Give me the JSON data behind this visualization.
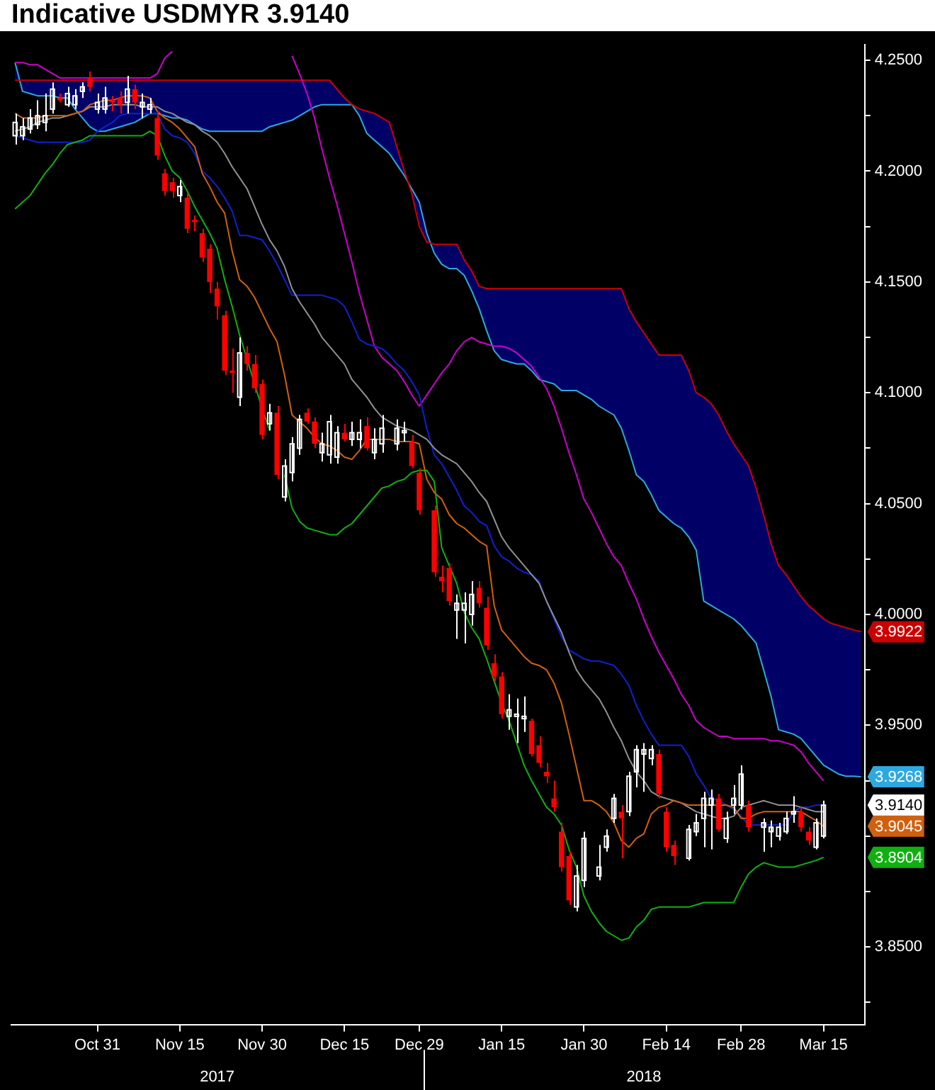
{
  "chart_data": {
    "type": "candlestick",
    "title": "Indicative USDMYR 3.9140",
    "categories": [
      null,
      null,
      null,
      null,
      null,
      null,
      null,
      null,
      null,
      null,
      null,
      "Oct 31",
      null,
      null,
      null,
      null,
      null,
      null,
      null,
      null,
      null,
      null,
      "Nov 15",
      null,
      null,
      null,
      null,
      null,
      null,
      null,
      null,
      null,
      null,
      "Nov 30",
      null,
      null,
      null,
      null,
      null,
      null,
      null,
      null,
      null,
      null,
      "Dec 15",
      null,
      null,
      null,
      null,
      null,
      null,
      null,
      null,
      null,
      "Dec 29",
      null,
      null,
      null,
      null,
      null,
      null,
      null,
      null,
      null,
      null,
      "Jan 15",
      null,
      null,
      null,
      null,
      null,
      null,
      null,
      null,
      null,
      null,
      "Jan 30",
      null,
      null,
      null,
      null,
      null,
      null,
      null,
      null,
      null,
      null,
      "Feb 14",
      null,
      null,
      null,
      null,
      null,
      null,
      null,
      null,
      null,
      "Feb 28",
      null,
      null,
      null,
      null,
      null,
      null,
      null,
      null,
      null,
      null,
      "Mar 15",
      null,
      null,
      null,
      null,
      null
    ],
    "ohlc": [
      [
        4.216,
        4.226,
        4.212,
        4.222
      ],
      [
        4.216,
        4.224,
        4.214,
        4.22
      ],
      [
        4.219,
        4.228,
        4.217,
        4.224
      ],
      [
        4.221,
        4.232,
        4.219,
        4.225
      ],
      [
        4.222,
        4.235,
        4.218,
        4.225
      ],
      [
        4.228,
        4.24,
        4.226,
        4.237
      ],
      [
        4.233,
        4.235,
        4.231,
        4.232
      ],
      [
        4.23,
        4.238,
        4.229,
        4.235
      ],
      [
        4.23,
        4.237,
        4.228,
        4.234
      ],
      [
        4.236,
        4.24,
        4.233,
        4.238
      ],
      [
        4.242,
        4.245,
        4.236,
        4.238
      ],
      [
        4.228,
        4.235,
        4.226,
        4.231
      ],
      [
        4.228,
        4.238,
        4.226,
        4.233
      ],
      [
        4.232,
        4.234,
        4.227,
        4.231
      ],
      [
        4.233,
        4.236,
        4.226,
        4.23
      ],
      [
        4.231,
        4.243,
        4.226,
        4.237
      ],
      [
        4.237,
        4.239,
        4.228,
        4.231
      ],
      [
        4.229,
        4.235,
        4.224,
        4.231
      ],
      [
        4.228,
        4.233,
        4.226,
        4.23
      ],
      [
        4.224,
        4.227,
        4.205,
        4.207
      ],
      [
        4.199,
        4.201,
        4.189,
        4.191
      ],
      [
        4.195,
        4.197,
        4.188,
        4.191
      ],
      [
        4.189,
        4.196,
        4.186,
        4.193
      ],
      [
        4.188,
        4.19,
        4.172,
        4.174
      ],
      [
        4.178,
        4.18,
        4.173,
        4.177
      ],
      [
        4.172,
        4.174,
        4.159,
        4.161
      ],
      [
        4.165,
        4.167,
        4.145,
        4.15
      ],
      [
        4.147,
        4.15,
        4.133,
        4.139
      ],
      [
        4.135,
        4.137,
        4.108,
        4.11
      ],
      [
        4.11,
        4.12,
        4.1,
        4.109
      ],
      [
        4.098,
        4.125,
        4.094,
        4.118
      ],
      [
        4.118,
        4.121,
        4.11,
        4.113
      ],
      [
        4.113,
        4.117,
        4.1,
        4.102
      ],
      [
        4.104,
        4.106,
        4.079,
        4.081
      ],
      [
        4.086,
        4.095,
        4.083,
        4.091
      ],
      [
        4.091,
        4.094,
        4.061,
        4.063
      ],
      [
        4.053,
        4.07,
        4.051,
        4.067
      ],
      [
        4.064,
        4.08,
        4.06,
        4.077
      ],
      [
        4.075,
        4.09,
        4.072,
        4.088
      ],
      [
        4.091,
        4.093,
        4.086,
        4.087
      ],
      [
        4.087,
        4.089,
        4.075,
        4.077
      ],
      [
        4.073,
        4.082,
        4.069,
        4.077
      ],
      [
        4.072,
        4.09,
        4.068,
        4.087
      ],
      [
        4.071,
        4.085,
        4.068,
        4.082
      ],
      [
        4.082,
        4.086,
        4.078,
        4.079
      ],
      [
        4.079,
        4.087,
        4.076,
        4.082
      ],
      [
        4.079,
        4.088,
        4.075,
        4.082
      ],
      [
        4.085,
        4.089,
        4.074,
        4.075
      ],
      [
        4.073,
        4.084,
        4.07,
        4.079
      ],
      [
        4.077,
        4.09,
        4.073,
        4.084
      ],
      null,
      [
        4.077,
        4.088,
        4.074,
        4.084
      ],
      [
        4.082,
        4.087,
        4.078,
        4.083
      ],
      [
        4.078,
        4.081,
        4.066,
        4.067
      ],
      [
        4.064,
        4.066,
        4.045,
        4.047
      ],
      null,
      [
        4.047,
        4.049,
        4.017,
        4.019
      ],
      [
        4.017,
        4.022,
        4.01,
        4.015
      ],
      [
        4.021,
        4.023,
        4.004,
        4.006
      ],
      [
        4.002,
        4.009,
        3.989,
        4.005
      ],
      [
        4.002,
        4.01,
        3.987,
        4.005
      ],
      [
        4.0,
        4.015,
        3.995,
        4.009
      ],
      [
        4.012,
        4.015,
        4.003,
        4.005
      ],
      [
        4.003,
        4.008,
        3.984,
        3.986
      ],
      [
        3.978,
        3.982,
        3.97,
        3.972
      ],
      [
        3.972,
        3.974,
        3.953,
        3.955
      ],
      [
        3.954,
        3.964,
        3.948,
        3.957
      ],
      [
        3.954,
        3.962,
        3.942,
        3.955
      ],
      [
        3.953,
        3.963,
        3.947,
        3.954
      ],
      [
        3.952,
        3.953,
        3.936,
        3.937
      ],
      [
        3.941,
        3.945,
        3.931,
        3.933
      ],
      [
        3.929,
        3.933,
        3.924,
        3.927
      ],
      [
        3.917,
        3.925,
        3.911,
        3.913
      ],
      [
        3.902,
        3.906,
        3.884,
        3.886
      ],
      [
        3.891,
        3.893,
        3.869,
        3.871
      ],
      [
        3.868,
        3.887,
        3.866,
        3.882
      ],
      [
        3.88,
        3.902,
        3.877,
        3.899
      ],
      null,
      [
        3.882,
        3.896,
        3.88,
        3.886
      ],
      [
        3.895,
        3.903,
        3.893,
        3.9
      ],
      [
        3.908,
        3.919,
        3.906,
        3.917
      ],
      [
        3.911,
        3.914,
        3.89,
        3.908
      ],
      [
        3.911,
        3.929,
        3.909,
        3.927
      ],
      [
        3.929,
        3.941,
        3.922,
        3.939
      ],
      [
        3.937,
        3.942,
        3.92,
        3.939
      ],
      [
        3.935,
        3.941,
        3.932,
        3.939
      ],
      [
        3.937,
        3.939,
        3.917,
        3.919
      ],
      [
        3.911,
        3.913,
        3.893,
        3.895
      ],
      [
        3.896,
        3.898,
        3.887,
        3.891
      ],
      null,
      [
        3.89,
        3.905,
        3.889,
        3.903
      ],
      [
        3.902,
        3.91,
        3.9,
        3.906
      ],
      [
        3.908,
        3.92,
        3.895,
        3.917
      ],
      [
        3.914,
        3.921,
        3.894,
        3.917
      ],
      [
        3.917,
        3.919,
        3.902,
        3.903
      ],
      [
        3.899,
        3.911,
        3.897,
        3.908
      ],
      [
        3.914,
        3.923,
        3.91,
        3.917
      ],
      [
        3.914,
        3.932,
        3.912,
        3.928
      ],
      [
        3.914,
        3.916,
        3.902,
        3.904
      ],
      null,
      [
        3.904,
        3.908,
        3.893,
        3.906
      ],
      [
        3.902,
        3.907,
        3.895,
        3.904
      ],
      [
        3.9,
        3.906,
        3.898,
        3.904
      ],
      [
        3.902,
        3.911,
        3.901,
        3.908
      ],
      [
        3.91,
        3.918,
        3.906,
        3.911
      ],
      [
        3.911,
        3.913,
        3.902,
        3.904
      ],
      [
        3.902,
        3.904,
        3.896,
        3.898
      ],
      [
        3.895,
        3.908,
        3.894,
        3.906
      ],
      [
        3.9,
        3.916,
        3.899,
        3.914
      ],
      null,
      null,
      null,
      null,
      null
    ],
    "colors": [
      "#ffffff",
      "#ffffff",
      "#ffffff",
      "#ffffff",
      "#ffffff",
      "#ffffff",
      "#ff0000",
      "#ffffff",
      "#ffffff",
      "#ffffff",
      "#ff0000",
      "#ffffff",
      "#ffffff",
      "#ff0000",
      "#ff0000",
      "#ffffff",
      "#ff0000",
      "#ffffff",
      "#ffffff",
      "#ff0000",
      "#ff0000",
      "#ff0000",
      "#ffffff",
      "#ff0000",
      "#ff0000",
      "#ff0000",
      "#ff0000",
      "#ff0000",
      "#ff0000",
      "#ff0000",
      "#ffffff",
      "#ff0000",
      "#ff0000",
      "#ff0000",
      "#ffffff",
      "#ff0000",
      "#ffffff",
      "#ffffff",
      "#ffffff",
      "#ff0000",
      "#ff0000",
      "#ffffff",
      "#ffffff",
      "#ffffff",
      "#ff0000",
      "#ffffff",
      "#ffffff",
      "#ff0000",
      "#ffffff",
      "#ffffff",
      null,
      "#ffffff",
      "#ffffff",
      "#ff0000",
      "#ff0000",
      null,
      "#ff0000",
      "#ff0000",
      "#ff0000",
      "#ffffff",
      "#ffffff",
      "#ffffff",
      "#ff0000",
      "#ff0000",
      "#ff0000",
      "#ff0000",
      "#ffffff",
      "#ffffff",
      "#ffffff",
      "#ff0000",
      "#ff0000",
      "#ff0000",
      "#ff0000",
      "#ff0000",
      "#ff0000",
      "#ffffff",
      "#ffffff",
      null,
      "#ffffff",
      "#ffffff",
      "#ffffff",
      "#ff0000",
      "#ffffff",
      "#ffffff",
      "#ffffff",
      "#ffffff",
      "#ff0000",
      "#ff0000",
      "#ff0000",
      null,
      "#ffffff",
      "#ffffff",
      "#ffffff",
      "#ffffff",
      "#ff0000",
      "#ffffff",
      "#ffffff",
      "#ffffff",
      "#ff0000",
      null,
      "#ffffff",
      "#ffffff",
      "#ffffff",
      "#ffffff",
      "#ffffff",
      "#ff0000",
      "#ff0000",
      "#ffffff",
      "#ffffff",
      null,
      null,
      null,
      null,
      null
    ],
    "series": [
      {
        "type": "line",
        "color": "#2fa8e0",
        "values": [
          4.249,
          4.236,
          4.235,
          4.234,
          4.234,
          4.234,
          4.233,
          4.233,
          4.228,
          4.224,
          4.22,
          4.218,
          4.218,
          4.219,
          4.22,
          4.221,
          4.222,
          4.224,
          4.226,
          4.226,
          4.225,
          4.224,
          4.224,
          4.223,
          4.221,
          4.219,
          4.218,
          4.218,
          4.218,
          4.218,
          4.218,
          4.218,
          4.218,
          4.218,
          4.22,
          4.221,
          4.222,
          4.223,
          4.225,
          4.227,
          4.229,
          4.23,
          4.23,
          4.23,
          4.23,
          4.23,
          4.225,
          4.217,
          4.214,
          4.211,
          4.208,
          4.203,
          4.198,
          4.192,
          4.186,
          4.172,
          4.163,
          4.158,
          4.156,
          4.156,
          4.153,
          4.146,
          4.138,
          4.128,
          4.119,
          4.115,
          4.114,
          4.113,
          4.113,
          4.11,
          4.106,
          4.105,
          4.104,
          4.101,
          4.101,
          4.101,
          4.099,
          4.097,
          4.094,
          4.092,
          4.09,
          4.084,
          4.074,
          4.063,
          4.06,
          4.054,
          4.047,
          4.044,
          4.041,
          4.039,
          4.035,
          4.029,
          4.006,
          4.004,
          4.002,
          4.0,
          3.998,
          3.995,
          3.991,
          3.987,
          3.975,
          3.963,
          3.948,
          3.947,
          3.946,
          3.944,
          3.94,
          3.936,
          3.932,
          3.93,
          3.928,
          3.927,
          3.927,
          3.9268
        ]
      },
      {
        "type": "line",
        "color": "#cc0000",
        "values": [
          4.241,
          4.241,
          4.241,
          4.241,
          4.241,
          4.241,
          4.241,
          4.241,
          4.241,
          4.241,
          4.241,
          4.241,
          4.241,
          4.241,
          4.241,
          4.241,
          4.241,
          4.241,
          4.241,
          4.241,
          4.241,
          4.241,
          4.241,
          4.241,
          4.241,
          4.241,
          4.241,
          4.241,
          4.241,
          4.241,
          4.241,
          4.241,
          4.241,
          4.241,
          4.241,
          4.241,
          4.241,
          4.241,
          4.241,
          4.241,
          4.241,
          4.241,
          4.241,
          4.237,
          4.233,
          4.23,
          4.228,
          4.227,
          4.226,
          4.224,
          4.222,
          4.211,
          4.2,
          4.19,
          4.175,
          4.168,
          4.167,
          4.167,
          4.167,
          4.167,
          4.16,
          4.155,
          4.148,
          4.147,
          4.147,
          4.147,
          4.147,
          4.147,
          4.147,
          4.147,
          4.147,
          4.147,
          4.147,
          4.147,
          4.147,
          4.147,
          4.147,
          4.147,
          4.147,
          4.147,
          4.147,
          4.147,
          4.138,
          4.132,
          4.127,
          4.122,
          4.117,
          4.117,
          4.117,
          4.117,
          4.11,
          4.1,
          4.098,
          4.095,
          4.09,
          4.083,
          4.077,
          4.072,
          4.067,
          4.057,
          4.045,
          4.032,
          4.022,
          4.018,
          4.013,
          4.008,
          4.004,
          4.001,
          3.998,
          3.996,
          3.995,
          3.994,
          3.993,
          3.9922
        ]
      },
      {
        "type": "line",
        "color": "#cc00cc",
        "values": [
          4.249,
          4.249,
          4.248,
          4.248,
          4.246,
          4.244,
          4.242,
          4.242,
          4.242,
          4.242,
          4.242,
          4.242,
          4.242,
          4.242,
          4.242,
          4.242,
          4.242,
          4.242,
          4.242,
          4.244,
          4.251,
          4.254,
          null,
          null,
          null,
          null,
          null,
          null,
          null,
          null,
          null,
          null,
          null,
          null,
          null,
          null,
          null,
          4.252,
          4.244,
          4.235,
          4.224,
          4.21,
          4.197,
          4.185,
          4.172,
          4.159,
          4.145,
          4.133,
          4.121,
          4.116,
          4.113,
          4.11,
          4.105,
          4.099,
          4.094,
          4.099,
          4.104,
          4.109,
          4.113,
          4.119,
          4.123,
          4.125,
          4.123,
          4.122,
          4.121,
          4.121,
          4.12,
          4.118,
          4.115,
          4.112,
          4.107,
          4.102,
          4.094,
          4.084,
          4.073,
          4.063,
          4.052,
          4.046,
          4.039,
          4.032,
          4.026,
          4.022,
          4.014,
          4.007,
          3.998,
          3.99,
          3.983,
          3.977,
          3.971,
          3.964,
          3.959,
          3.952,
          3.949,
          3.947,
          3.945,
          3.945,
          3.944,
          3.944,
          3.944,
          3.944,
          3.944,
          3.943,
          3.943,
          3.942,
          3.941,
          3.938,
          3.933,
          3.929,
          3.925,
          null,
          null,
          null,
          null,
          null
        ]
      },
      {
        "type": "line",
        "color": "#1020d0",
        "values": [
          4.216,
          4.215,
          4.214,
          4.213,
          4.213,
          4.213,
          4.213,
          4.213,
          4.213,
          4.213,
          4.214,
          4.218,
          4.22,
          4.222,
          4.225,
          4.226,
          4.226,
          4.226,
          4.226,
          4.226,
          4.219,
          4.216,
          4.215,
          4.213,
          4.208,
          4.2,
          4.197,
          4.193,
          4.188,
          4.182,
          4.171,
          4.171,
          4.17,
          4.169,
          4.164,
          4.158,
          4.151,
          4.144,
          4.144,
          4.144,
          4.144,
          4.144,
          4.143,
          4.142,
          4.139,
          4.132,
          4.124,
          4.122,
          4.121,
          4.12,
          4.117,
          4.113,
          4.11,
          4.105,
          4.099,
          4.084,
          4.072,
          4.068,
          4.062,
          4.056,
          4.049,
          4.046,
          4.042,
          4.04,
          4.031,
          4.026,
          4.024,
          4.021,
          4.019,
          4.018,
          4.015,
          4.006,
          3.998,
          3.99,
          3.984,
          3.982,
          3.98,
          3.979,
          3.979,
          3.978,
          3.977,
          3.973,
          3.968,
          3.959,
          3.952,
          3.946,
          3.941,
          3.941,
          3.941,
          3.941,
          3.936,
          3.928,
          3.923,
          3.917,
          3.916,
          3.914,
          3.912,
          3.909,
          3.905,
          3.905,
          3.905,
          3.905,
          3.905,
          3.905,
          3.911,
          3.913,
          3.913,
          3.914,
          3.914,
          null,
          null,
          null,
          null,
          null
        ]
      },
      {
        "type": "line",
        "color": "#909090",
        "values": [
          4.218,
          4.219,
          4.22,
          4.222,
          4.223,
          4.224,
          4.224,
          4.225,
          4.226,
          4.227,
          4.229,
          4.229,
          4.229,
          4.23,
          4.23,
          4.23,
          4.23,
          4.229,
          4.229,
          4.229,
          4.227,
          4.226,
          4.224,
          4.222,
          4.221,
          4.218,
          4.216,
          4.213,
          4.208,
          4.202,
          4.197,
          4.192,
          4.184,
          4.176,
          4.169,
          4.164,
          4.157,
          4.147,
          4.141,
          4.136,
          4.131,
          4.125,
          4.121,
          4.117,
          4.113,
          4.106,
          4.102,
          4.098,
          4.093,
          4.089,
          4.087,
          4.085,
          4.084,
          4.083,
          4.081,
          4.079,
          4.075,
          4.072,
          4.07,
          4.068,
          4.064,
          4.06,
          4.055,
          4.051,
          4.043,
          4.035,
          4.03,
          4.026,
          4.022,
          4.018,
          4.014,
          4.006,
          3.999,
          3.992,
          3.983,
          3.975,
          3.97,
          3.966,
          3.962,
          3.956,
          3.949,
          3.943,
          3.935,
          3.929,
          3.925,
          3.92,
          3.918,
          3.917,
          3.916,
          3.915,
          3.913,
          3.911,
          3.91,
          3.909,
          3.908,
          3.908,
          3.909,
          3.913,
          3.914,
          3.915,
          3.916,
          3.915,
          3.914,
          3.914,
          3.914,
          3.913,
          3.912,
          3.911,
          3.911,
          null,
          null,
          null,
          null,
          null
        ]
      },
      {
        "type": "line",
        "color": "#d06010",
        "values": [
          4.226,
          4.224,
          4.224,
          4.224,
          4.225,
          4.225,
          4.225,
          4.225,
          4.226,
          4.227,
          4.23,
          4.231,
          4.232,
          4.232,
          4.233,
          4.234,
          4.234,
          4.234,
          4.233,
          4.227,
          4.224,
          4.222,
          4.219,
          4.215,
          4.211,
          4.199,
          4.193,
          4.186,
          4.181,
          4.164,
          4.151,
          4.148,
          4.143,
          4.136,
          4.129,
          4.123,
          4.108,
          4.09,
          4.087,
          4.084,
          4.08,
          4.077,
          4.076,
          4.074,
          4.071,
          4.07,
          4.074,
          4.079,
          4.079,
          4.079,
          4.079,
          4.078,
          4.078,
          4.078,
          4.077,
          4.061,
          4.055,
          4.052,
          4.045,
          4.041,
          4.039,
          4.036,
          4.033,
          4.031,
          4.004,
          3.993,
          3.989,
          3.985,
          3.981,
          3.978,
          3.977,
          3.975,
          3.969,
          3.96,
          3.946,
          3.931,
          3.916,
          3.916,
          3.914,
          3.911,
          3.906,
          3.898,
          3.895,
          3.899,
          3.901,
          3.91,
          3.913,
          3.914,
          3.916,
          3.915,
          3.914,
          3.914,
          3.914,
          3.914,
          3.914,
          3.914,
          3.913,
          3.908,
          3.908,
          3.91,
          3.911,
          3.911,
          3.911,
          3.911,
          3.911,
          3.911,
          3.909,
          3.907,
          3.9045,
          null,
          null,
          null,
          null,
          null
        ]
      },
      {
        "type": "line",
        "color": "#10b010",
        "values": [
          4.183,
          4.186,
          4.189,
          4.194,
          4.199,
          4.203,
          4.208,
          4.212,
          4.213,
          4.214,
          4.216,
          4.216,
          4.216,
          4.216,
          4.216,
          4.216,
          4.216,
          4.216,
          4.218,
          4.216,
          4.207,
          4.2,
          4.197,
          4.191,
          4.184,
          4.178,
          4.172,
          4.165,
          4.151,
          4.139,
          4.126,
          4.115,
          4.104,
          4.093,
          4.083,
          null,
          4.063,
          4.048,
          4.042,
          4.039,
          4.038,
          4.037,
          4.036,
          4.036,
          4.039,
          4.041,
          4.045,
          4.049,
          4.053,
          4.057,
          4.058,
          4.06,
          4.061,
          4.064,
          4.065,
          4.065,
          4.06,
          4.03,
          4.022,
          4.014,
          4.001,
          3.994,
          3.989,
          3.98,
          3.97,
          3.96,
          3.952,
          3.942,
          3.932,
          3.925,
          3.919,
          3.913,
          3.91,
          3.905,
          3.894,
          3.886,
          3.873,
          3.866,
          3.861,
          3.857,
          3.855,
          3.853,
          3.854,
          3.859,
          3.862,
          3.867,
          3.868,
          3.868,
          3.868,
          3.868,
          3.868,
          3.869,
          3.87,
          3.87,
          3.87,
          3.87,
          3.87,
          3.877,
          3.883,
          3.886,
          3.888,
          3.887,
          3.886,
          3.886,
          3.886,
          3.887,
          3.888,
          3.889,
          3.8904,
          null,
          null,
          null,
          null,
          null
        ]
      }
    ],
    "ylim": [
      3.815,
      4.257
    ],
    "yticks": [
      {
        "value": 4.25,
        "label": "4.2500"
      },
      {
        "value": 4.225,
        "label": null
      },
      {
        "value": 4.2,
        "label": "4.2000"
      },
      {
        "value": 4.175,
        "label": null
      },
      {
        "value": 4.15,
        "label": "4.1500"
      },
      {
        "value": 4.125,
        "label": null
      },
      {
        "value": 4.1,
        "label": "4.1000"
      },
      {
        "value": 4.075,
        "label": null
      },
      {
        "value": 4.05,
        "label": "4.0500"
      },
      {
        "value": 4.025,
        "label": null
      },
      {
        "value": 4.0,
        "label": "4.0000"
      },
      {
        "value": 3.975,
        "label": null
      },
      {
        "value": 3.95,
        "label": "3.9500"
      },
      {
        "value": 3.925,
        "label": null
      },
      {
        "value": 3.9,
        "label": null
      },
      {
        "value": 3.875,
        "label": null
      },
      {
        "value": 3.85,
        "label": "3.8500"
      },
      {
        "value": 3.825,
        "label": null
      }
    ],
    "annotations": [
      {
        "text": "3.9922",
        "y": 3.9922
      },
      {
        "text": "3.9268",
        "y": 3.9268
      },
      {
        "text": "3.9140",
        "y": 3.914
      },
      {
        "text": "3.9045",
        "y": 3.9045
      },
      {
        "text": "3.8904",
        "y": 3.8904
      },
      "2017",
      "2018"
    ]
  }
}
